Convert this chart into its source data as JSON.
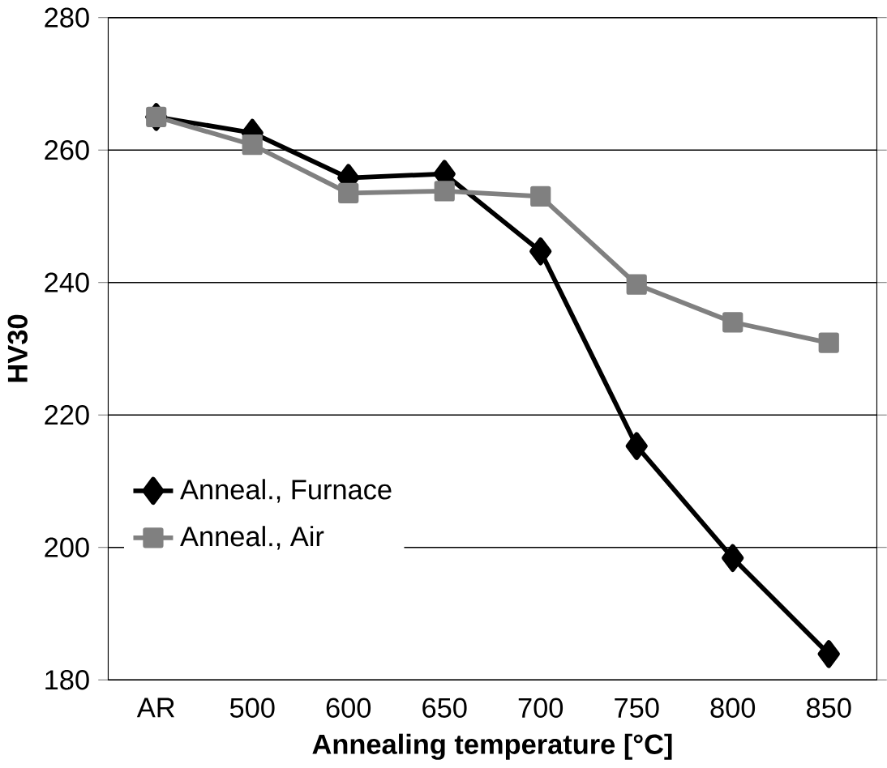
{
  "chart_data": {
    "type": "line",
    "xlabel": "Annealing temperature [°C]",
    "ylabel": "HV30",
    "categories": [
      "AR",
      "500",
      "600",
      "650",
      "700",
      "750",
      "800",
      "850"
    ],
    "series": [
      {
        "name": "Anneal., Furnace",
        "color": "#000000",
        "marker": "diamond",
        "values": [
          265,
          262.6,
          255.8,
          256.4,
          244.7,
          215.3,
          198.4,
          183.9
        ]
      },
      {
        "name": "Anneal., Air",
        "color": "#808080",
        "marker": "square",
        "values": [
          265,
          260.8,
          253.5,
          253.8,
          253,
          239.7,
          234,
          230.9
        ]
      }
    ],
    "ylim": [
      180,
      280
    ],
    "yticks": [
      180,
      200,
      220,
      240,
      260,
      280
    ],
    "grid": "y",
    "legend": "left",
    "line_style": "solid"
  }
}
